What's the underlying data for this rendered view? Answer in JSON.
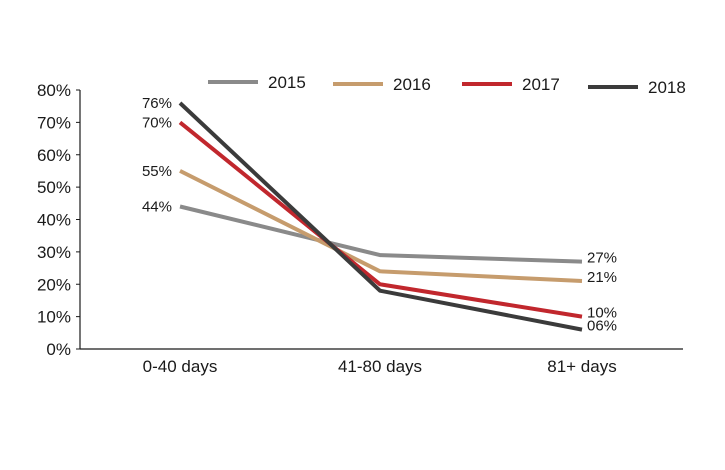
{
  "chart_data": {
    "type": "line",
    "categories": [
      "0-40 days",
      "41-80 days",
      "81+ days"
    ],
    "series": [
      {
        "name": "2015",
        "color": "#8a8a8a",
        "values": [
          44,
          29,
          27
        ],
        "labels": [
          "44%",
          "",
          "27%"
        ]
      },
      {
        "name": "2016",
        "color": "#c69c6d",
        "values": [
          55,
          24,
          21
        ],
        "labels": [
          "55%",
          "",
          "21%"
        ]
      },
      {
        "name": "2017",
        "color": "#c1272d",
        "values": [
          70,
          20,
          10
        ],
        "labels": [
          "70%",
          "",
          "10%"
        ]
      },
      {
        "name": "2018",
        "color": "#3b3b3b",
        "values": [
          76,
          18,
          6
        ],
        "labels": [
          "76%",
          "",
          "06%"
        ]
      }
    ],
    "ylim": [
      0,
      80
    ],
    "yticks": [
      0,
      10,
      20,
      30,
      40,
      50,
      60,
      70,
      80
    ],
    "ytick_labels": [
      "0%",
      "10%",
      "20%",
      "30%",
      "40%",
      "50%",
      "60%",
      "70%",
      "80%"
    ],
    "title": "",
    "xlabel": "",
    "ylabel": "",
    "grid": false,
    "legend": "top"
  }
}
